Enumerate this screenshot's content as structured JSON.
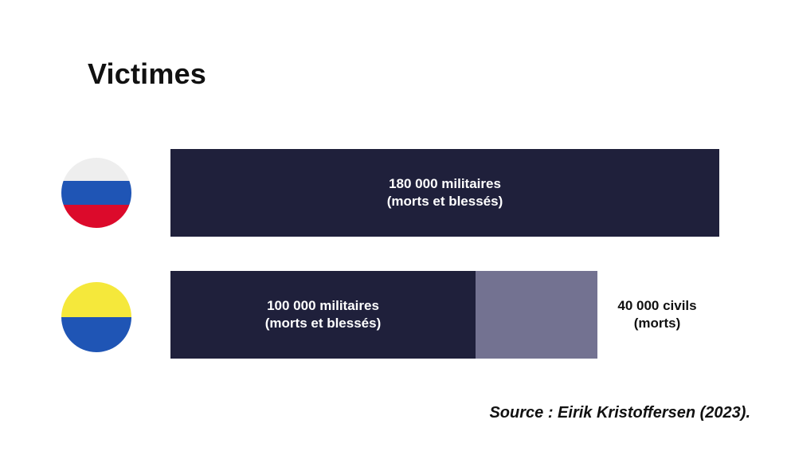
{
  "title": "Victimes",
  "source": "Source : Eirik Kristoffersen (2023).",
  "flags": {
    "russia": {
      "icon": "russia-flag-icon",
      "colors": [
        "#eeeeee",
        "#1f55b5",
        "#dc0a2b"
      ]
    },
    "ukraine": {
      "icon": "ukraine-flag-icon",
      "colors": [
        "#f5e83b",
        "#1f55b5"
      ]
    }
  },
  "colors": {
    "military": "#1f203b",
    "civil": "#737291"
  },
  "chart_data": {
    "type": "bar",
    "orientation": "horizontal",
    "stacked": true,
    "unit": "victimes",
    "categories": [
      "Russie",
      "Ukraine"
    ],
    "series": [
      {
        "values": [
          180000,
          100000
        ],
        "color": "#1f203b"
      },
      {
        "values": [
          0,
          40000
        ],
        "color": "#737291"
      }
    ],
    "bars": [
      {
        "segments": [
          {
            "value": 180000,
            "label": "180 000 militaires\n(morts et blessés)",
            "color": "#1f203b"
          }
        ]
      },
      {
        "segments": [
          {
            "value": 100000,
            "label": "100 000 militaires\n(morts et blessés)",
            "color": "#1f203b"
          },
          {
            "value": 40000,
            "label": "40 000 civils\n(morts)",
            "color": "#737291",
            "label_outside": true
          }
        ]
      }
    ],
    "grid": false,
    "axes": false,
    "legend": "none"
  }
}
